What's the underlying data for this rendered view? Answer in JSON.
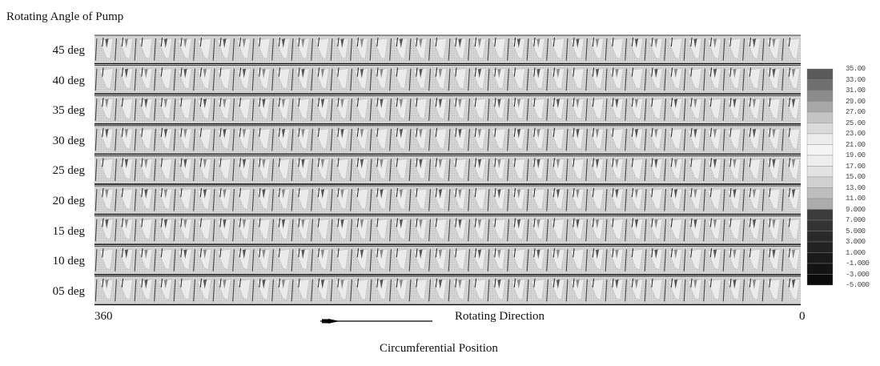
{
  "figure": {
    "title": "Rotating Angle of Pump",
    "rows": [
      "45 deg",
      "40 deg",
      "35 deg",
      "30 deg",
      "25 deg",
      "20 deg",
      "15 deg",
      "10 deg",
      "05 deg"
    ],
    "x_axis": {
      "left_label": "360",
      "right_label": "0",
      "title": "Circumferential Position"
    },
    "direction_label": "Rotating Direction",
    "cells_per_row": 36,
    "colorbar": {
      "ticks": [
        "35.00",
        "33.00",
        "31.00",
        "29.00",
        "27.00",
        "25.00",
        "23.00",
        "21.00",
        "19.00",
        "17.00",
        "15.00",
        "13.00",
        "11.00",
        "9.000",
        "7.000",
        "5.000",
        "3.000",
        "1.000",
        "-1.000",
        "-3.000",
        "-5.000"
      ],
      "colors": [
        "#5a5a5a",
        "#6f6f6f",
        "#8c8c8c",
        "#a8a8a8",
        "#c4c4c4",
        "#dadada",
        "#ececec",
        "#f4f4f4",
        "#eeeeee",
        "#e2e2e2",
        "#d0d0d0",
        "#bebebe",
        "#acacac",
        "#3c3c3c",
        "#333333",
        "#2a2a2a",
        "#222222",
        "#1a1a1a",
        "#131313",
        "#0b0b0b"
      ]
    }
  }
}
